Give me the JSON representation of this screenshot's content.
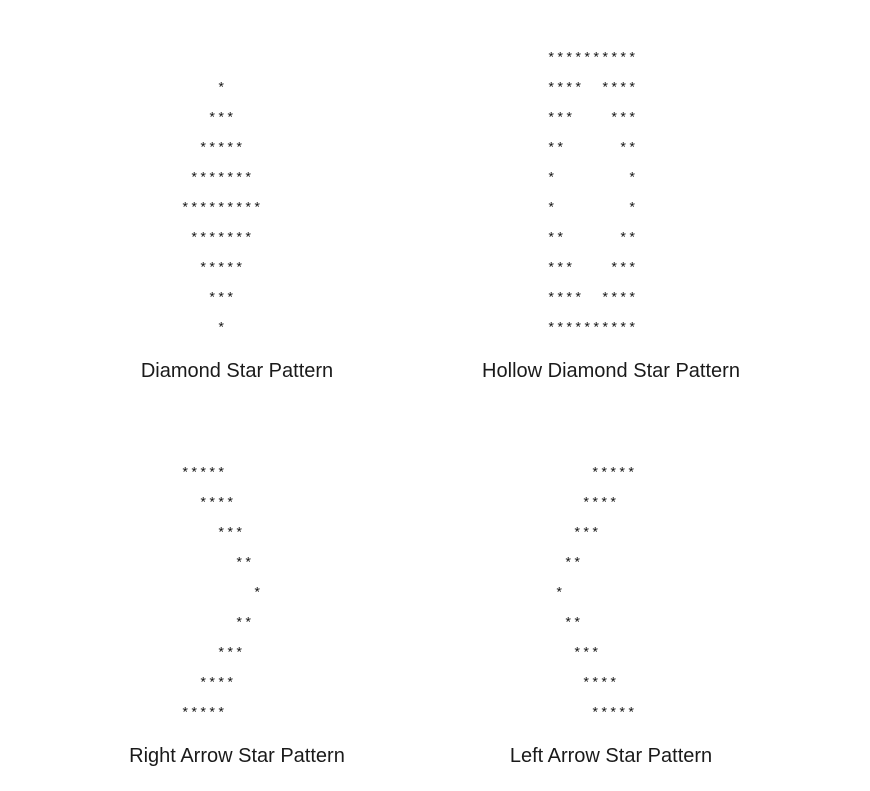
{
  "patterns": [
    {
      "caption": "Diamond Star Pattern",
      "art": "    *\n   ***\n  *****\n *******\n*********\n *******\n  *****\n   ***\n    *"
    },
    {
      "caption": "Hollow Diamond Star Pattern",
      "art": "**********\n****  ****\n***    ***\n**      **\n*        *\n*        *\n**      **\n***    ***\n****  ****\n**********"
    },
    {
      "caption": "Right Arrow Star Pattern",
      "art": "*****\n  ****\n    ***\n      **\n        *\n      **\n    ***\n  ****\n*****"
    },
    {
      "caption": "Left Arrow Star Pattern",
      "art": "    *****\n   ****\n  ***\n **\n*\n **\n  ***\n   ****\n    *****"
    }
  ]
}
